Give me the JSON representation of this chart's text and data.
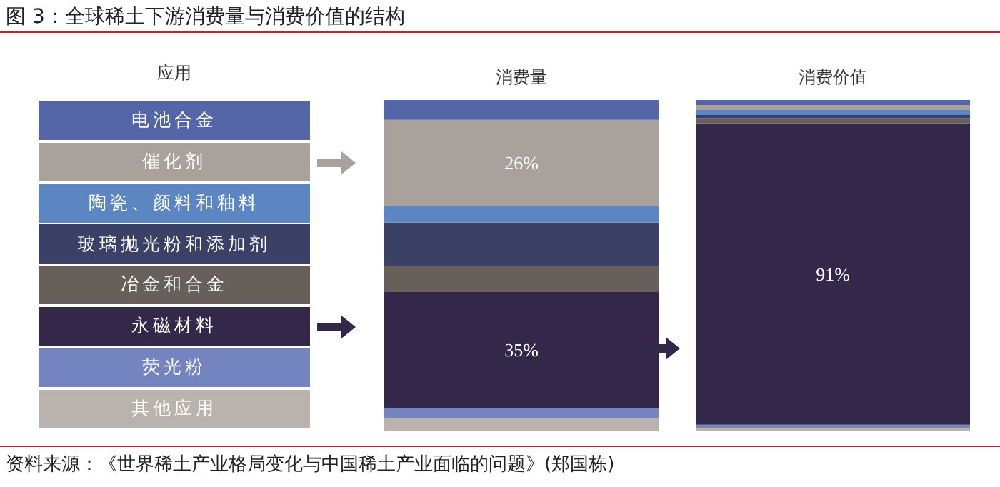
{
  "chart_data": {
    "type": "bar",
    "stacked": true,
    "title": "图 3：全球稀土下游消费量与消费价值的结构",
    "legend_title": "应用",
    "legend": "left",
    "categories": [
      "消费量",
      "消费价值"
    ],
    "series": [
      {
        "name": "其他应用",
        "color": "#bab2ac",
        "values": [
          4,
          1
        ]
      },
      {
        "name": "荧光粉",
        "color": "#7384c0",
        "values": [
          3,
          1
        ]
      },
      {
        "name": "永磁材料",
        "color": "#33284a",
        "values": [
          35,
          91
        ],
        "value_labels": [
          "35%",
          "91%"
        ]
      },
      {
        "name": "冶金和合金",
        "color": "#67605a",
        "values": [
          8,
          1.5
        ]
      },
      {
        "name": "玻璃抛光粉和添加剂",
        "color": "#3a4066",
        "values": [
          13,
          1
        ]
      },
      {
        "name": "陶瓷、颜料和釉料",
        "color": "#5b86c2",
        "values": [
          5,
          1.5
        ]
      },
      {
        "name": "催化剂",
        "color": "#a9a19b",
        "values": [
          26,
          1.5
        ],
        "value_labels": [
          "26%",
          null
        ]
      },
      {
        "name": "电池合金",
        "color": "#5566a8",
        "values": [
          6,
          1.5
        ]
      }
    ],
    "annotations": [
      "资料来源：《世界稀土产业格局变化与中国稀土产业面临的问题》(郑国栋)"
    ]
  }
}
